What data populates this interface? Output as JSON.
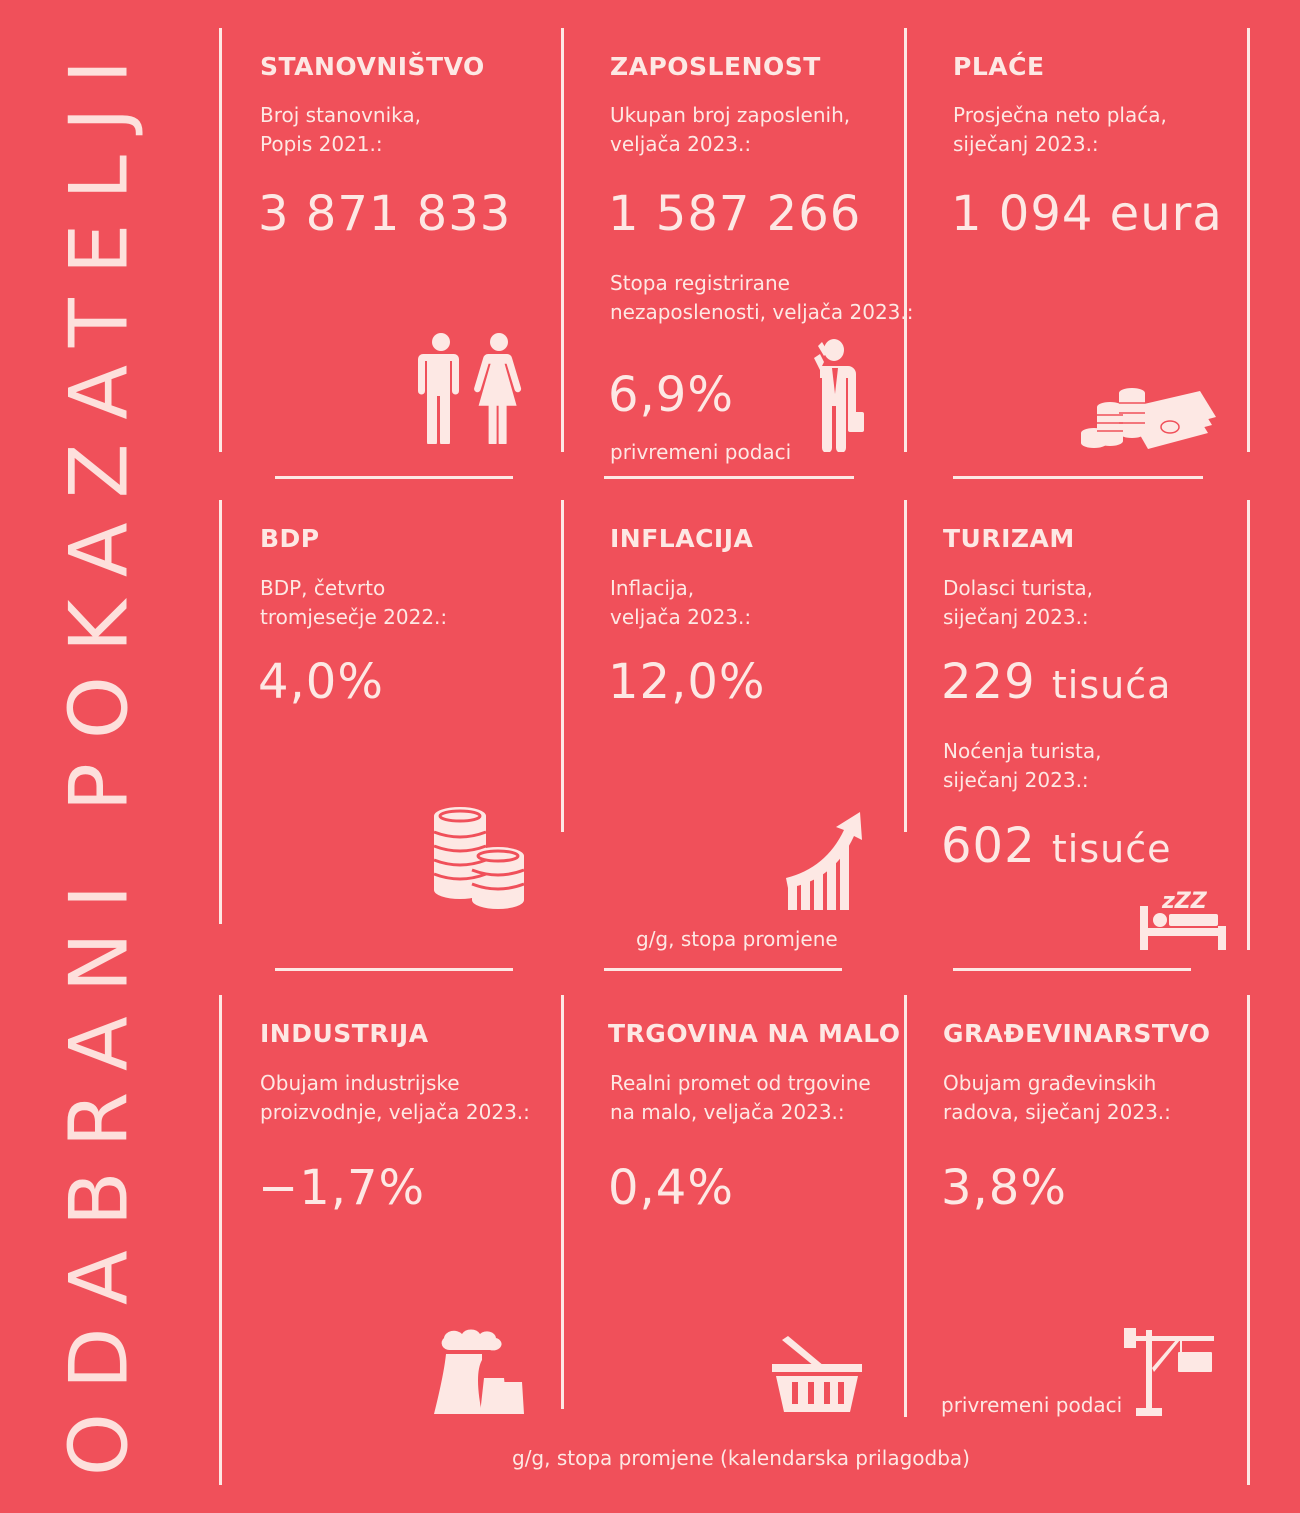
{
  "page_title": "ODABRANI POKAZATELJI",
  "colors": {
    "background": "#f0505a",
    "foreground": "#fde8e4"
  },
  "row1": {
    "population": {
      "heading": "STANOVNIŠTVO",
      "label_line1": "Broj stanovnika,",
      "label_line2": "Popis 2021.:",
      "value": "3 871 833",
      "icon": "people-icon"
    },
    "employment": {
      "heading": "ZAPOSLENOST",
      "label_line1": "Ukupan broj zaposlenih,",
      "label_line2": "veljača 2023.:",
      "value": "1 587 266",
      "label2_line1": "Stopa registrirane",
      "label2_line2": "nezaposlenosti, veljača 2023.:",
      "value2": "6,9%",
      "note": "privremeni podaci",
      "icon": "businessman-icon"
    },
    "wages": {
      "heading": "PLAĆE",
      "label_line1": "Prosječna neto plaća,",
      "label_line2": "siječanj 2023.:",
      "value": "1 094 eura",
      "icon": "money-icon"
    }
  },
  "row2": {
    "gdp": {
      "heading": "BDP",
      "label_line1": "BDP, četvrto",
      "label_line2": "tromjesečje 2022.:",
      "value": "4,0%",
      "icon": "coins-icon"
    },
    "inflation": {
      "heading": "INFLACIJA",
      "label_line1": "Inflacija,",
      "label_line2": "veljača 2023.:",
      "value": "12,0%",
      "note": "g/g, stopa promjene",
      "icon": "growth-chart-icon"
    },
    "tourism": {
      "heading": "TURIZAM",
      "label_line1": "Dolasci turista,",
      "label_line2": "siječanj 2023.:",
      "value_number": "229",
      "value_unit": "tisuća",
      "label2_line1": "Noćenja turista,",
      "label2_line2": "siječanj 2023.:",
      "value2_number": "602",
      "value2_unit": "tisuće",
      "icon": "sleeping-bed-icon",
      "sleep_letters": "zZZ"
    }
  },
  "row3": {
    "industry": {
      "heading": "INDUSTRIJA",
      "label_line1": "Obujam industrijske",
      "label_line2": "proizvodnje, veljača 2023.:",
      "value": "−1,7%",
      "icon": "factory-icon"
    },
    "retail": {
      "heading": "TRGOVINA NA MALO",
      "label_line1": "Realni promet od trgovine",
      "label_line2": "na malo, veljača 2023.:",
      "value": "0,4%",
      "icon": "basket-icon"
    },
    "construction": {
      "heading": "GRAĐEVINARSTVO",
      "label_line1": "Obujam građevinskih",
      "label_line2": "radova, siječanj 2023.:",
      "value": "3,8%",
      "note": "privremeni podaci",
      "icon": "crane-icon"
    }
  },
  "footer_note": "g/g, stopa promjene (kalendarska prilagodba)"
}
